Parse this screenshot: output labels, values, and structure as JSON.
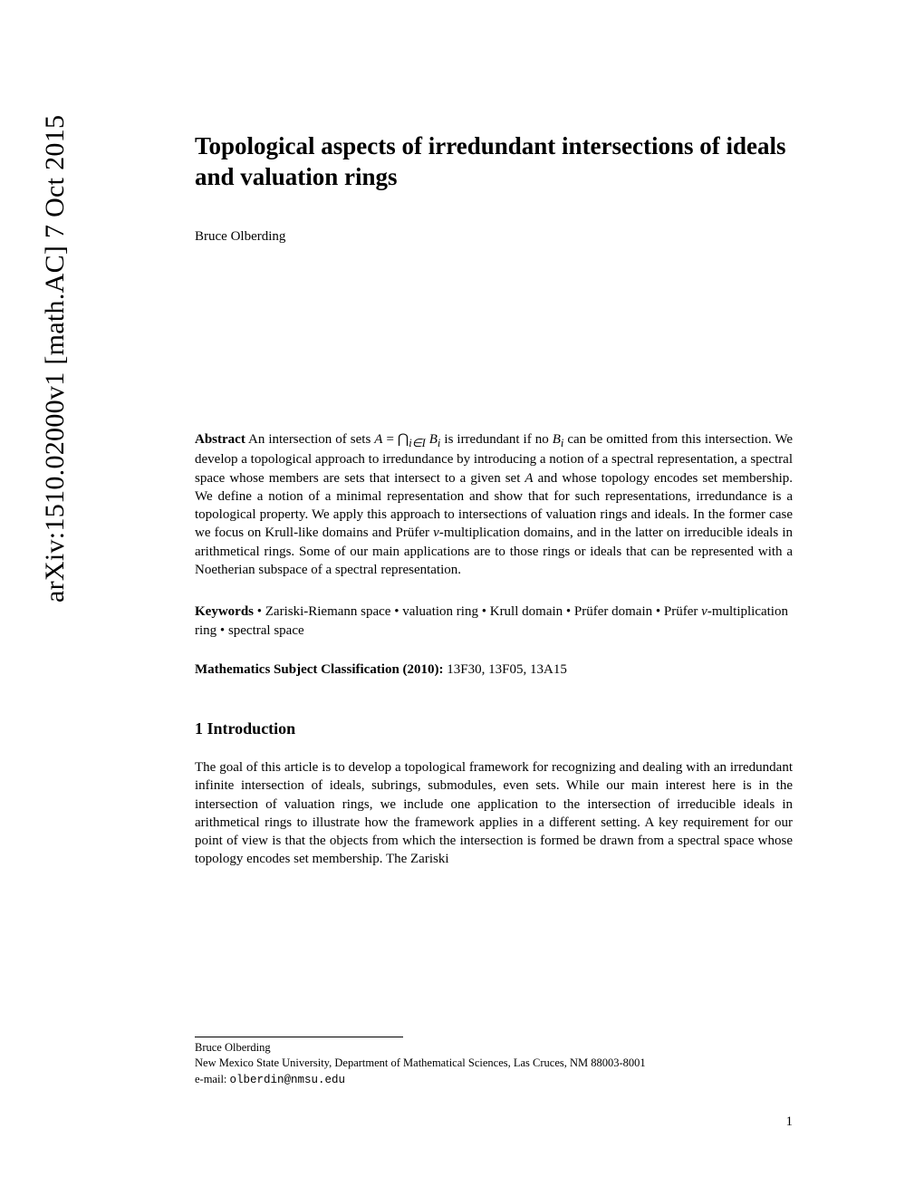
{
  "arxiv_id": "arXiv:1510.02000v1  [math.AC]  7 Oct 2015",
  "title": "Topological aspects of irredundant intersections of ideals and valuation rings",
  "author": "Bruce Olberding",
  "abstract": {
    "label": "Abstract",
    "text_part1": " An intersection of sets ",
    "math_a": "A",
    "text_eq": " = ",
    "math_intersect": "⋂",
    "math_sub": "i∈I",
    "math_bi": " B",
    "math_bi_sub": "i",
    "text_part2": " is irredundant if no ",
    "math_bi2": "B",
    "math_bi2_sub": "i",
    "text_part3": " can be omitted from this intersection. We develop a topological approach to irredundance by introducing a notion of a spectral representation, a spectral space whose members are sets that intersect to a given set ",
    "math_a2": "A",
    "text_part4": " and whose topology encodes set membership. We define a notion of a minimal representation and show that for such representations, irredundance is a topological property. We apply this approach to intersections of valuation rings and ideals. In the former case we focus on Krull-like domains and Prüfer ",
    "math_v1": "v",
    "text_part5": "-multiplication domains, and in the latter on irreducible ideals in arithmetical rings. Some of our main applications are to those rings or ideals that can be represented with a Noetherian subspace of a spectral representation."
  },
  "keywords": {
    "label": "Keywords",
    "bullet": " • ",
    "k1": "Zariski-Riemann space",
    "k2": "valuation ring",
    "k3": "Krull domain",
    "k4": "Prüfer domain",
    "k5_pre": "Prüfer ",
    "k5_v": "v",
    "k5_post": "-multiplication ring",
    "k6": "spectral space"
  },
  "msc": {
    "label": "Mathematics Subject Classification (2010):",
    "codes": " 13F30, 13F05, 13A15"
  },
  "section1": {
    "heading": "1 Introduction",
    "text": "The goal of this article is to develop a topological framework for recognizing and dealing with an irredundant infinite intersection of ideals, subrings, submodules, even sets. While our main interest here is in the intersection of valuation rings, we include one application to the intersection of irreducible ideals in arithmetical rings to illustrate how the framework applies in a different setting. A key requirement for our point of view is that the objects from which the intersection is formed be drawn from a spectral space whose topology encodes set membership. The Zariski"
  },
  "affiliation": {
    "name": "Bruce Olberding",
    "address": "New Mexico State University, Department of Mathematical Sciences, Las Cruces, NM 88003-8001",
    "email_label": "e-mail: ",
    "email": "olberdin@nmsu.edu"
  },
  "page_number": "1"
}
